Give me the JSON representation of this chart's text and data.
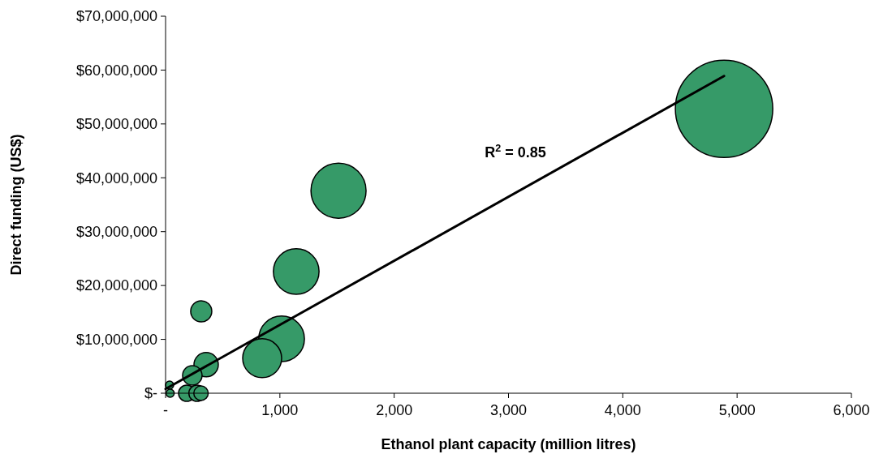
{
  "chart_data": {
    "type": "bubble",
    "xlabel": "Ethanol plant capacity (million litres)",
    "ylabel": "Direct funding (US$)",
    "xlim": [
      0,
      6000
    ],
    "xticks": [
      {
        "value": 0,
        "label": "-"
      },
      {
        "value": 1000,
        "label": "1,000"
      },
      {
        "value": 2000,
        "label": "2,000"
      },
      {
        "value": 3000,
        "label": "3,000"
      },
      {
        "value": 4000,
        "label": "4,000"
      },
      {
        "value": 5000,
        "label": "5,000"
      },
      {
        "value": 6000,
        "label": "6,000"
      }
    ],
    "ylim": [
      0,
      70000000
    ],
    "yticks": [
      {
        "value": 0,
        "label": "$-"
      },
      {
        "value": 10000000,
        "label": "$10,000,000"
      },
      {
        "value": 20000000,
        "label": "$20,000,000"
      },
      {
        "value": 30000000,
        "label": "$30,000,000"
      },
      {
        "value": 40000000,
        "label": "$40,000,000"
      },
      {
        "value": 50000000,
        "label": "$50,000,000"
      },
      {
        "value": 60000000,
        "label": "$60,000,000"
      },
      {
        "value": 70000000,
        "label": "$70,000,000"
      }
    ],
    "grid": false,
    "series": [
      {
        "color": "#369a68",
        "x": [
          4886,
          1513,
          1143,
          312,
          1015,
          845,
          355,
          234,
          185,
          275,
          310,
          35,
          40
        ],
        "values": [
          52800000,
          37600000,
          22600000,
          15200000,
          10100000,
          6500000,
          5300000,
          3300000,
          0,
          0,
          0,
          1500000,
          0
        ],
        "sizes": [
          1,
          0.32,
          0.22,
          0.047,
          0.22,
          0.16,
          0.0625,
          0.04,
          0.028,
          0.028,
          0.022,
          0.007,
          0.007
        ]
      },
      {
        "type": "line",
        "color": "#000000",
        "x": [
          0,
          4886
        ],
        "values": [
          800000,
          58900000
        ]
      }
    ],
    "annotations": [
      "R$^{2}$ = 0.85"
    ]
  }
}
